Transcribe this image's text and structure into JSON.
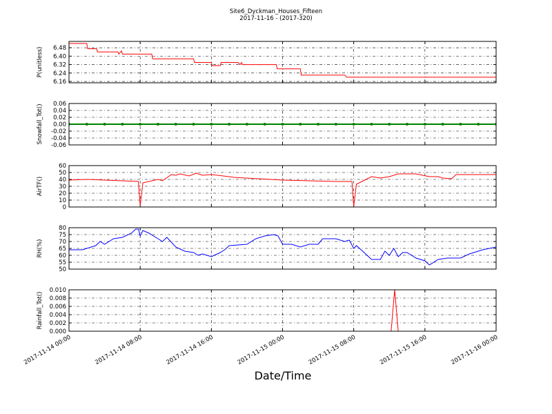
{
  "title": "Site6_Dyckman_Houses_Fifteen",
  "subtitle": "2017-11-16 - (2017-320)",
  "xlabel": "Date/Time",
  "xlim": [
    "2017-11-14 00:00",
    "2017-11-16 00:00"
  ],
  "xticks": [
    "2017-11-14 00:00",
    "2017-11-14 08:00",
    "2017-11-14 16:00",
    "2017-11-15 00:00",
    "2017-11-15 08:00",
    "2017-11-15 16:00",
    "2017-11-16 00:00"
  ],
  "grid": true,
  "chart_data": [
    {
      "type": "line",
      "ylabel": "P(unitless)",
      "ylim": [
        6.147,
        6.54
      ],
      "yticks": [
        6.16,
        6.24,
        6.32,
        {
          "value": 6.4,
          "label": "6.40"
        },
        6.48
      ],
      "x": [
        "2017-11-14 00:00",
        "2017-11-14 02:00",
        "2017-11-14 02:06",
        "2017-11-14 03:06",
        "2017-11-14 03:12",
        "2017-11-14 05:30",
        "2017-11-14 05:36",
        "2017-11-14 05:54",
        "2017-11-14 06:00",
        "2017-11-14 09:18",
        "2017-11-14 09:24",
        "2017-11-14 14:00",
        "2017-11-14 14:06",
        "2017-11-14 16:00",
        "2017-11-14 16:06",
        "2017-11-14 17:00",
        "2017-11-14 17:06",
        "2017-11-14 19:00",
        "2017-11-14 19:12",
        "2017-11-14 19:24",
        "2017-11-14 19:30",
        "2017-11-14 23:18",
        "2017-11-14 23:24",
        "2017-11-15 02:00",
        "2017-11-15 02:06",
        "2017-11-15 07:00",
        "2017-11-15 07:12",
        "2017-11-16 00:00"
      ],
      "series": [
        {
          "color": "#ff0000",
          "values": [
            6.52,
            6.52,
            6.47,
            6.47,
            6.44,
            6.44,
            6.42,
            6.45,
            6.42,
            6.42,
            6.375,
            6.375,
            6.34,
            6.34,
            6.31,
            6.31,
            6.34,
            6.34,
            6.32,
            6.34,
            6.32,
            6.32,
            6.28,
            6.28,
            6.22,
            6.22,
            6.2,
            6.2
          ]
        }
      ]
    },
    {
      "type": "line",
      "ylabel": "Snowfall_Tot()",
      "ylim": [
        -0.06,
        0.06
      ],
      "yticks": [
        -0.06,
        -0.04,
        -0.02,
        {
          "value": 0,
          "label": "0.00"
        },
        0.02,
        0.04,
        0.06
      ],
      "markers": true,
      "x": [
        "2017-11-14 00:00",
        "2017-11-14 02:00",
        "2017-11-14 04:00",
        "2017-11-14 06:00",
        "2017-11-14 08:00",
        "2017-11-14 10:00",
        "2017-11-14 12:00",
        "2017-11-14 14:00",
        "2017-11-14 16:00",
        "2017-11-14 18:00",
        "2017-11-14 20:00",
        "2017-11-14 22:00",
        "2017-11-15 00:00",
        "2017-11-15 02:00",
        "2017-11-15 04:00",
        "2017-11-15 06:00",
        "2017-11-15 08:00",
        "2017-11-15 10:00",
        "2017-11-15 12:00",
        "2017-11-15 14:00",
        "2017-11-15 16:00",
        "2017-11-15 18:00",
        "2017-11-15 20:00",
        "2017-11-15 22:00",
        "2017-11-16 00:00"
      ],
      "series": [
        {
          "color": "#008000",
          "values": [
            0,
            0,
            0,
            0,
            0,
            0,
            0,
            0,
            0,
            0,
            0,
            0,
            0,
            0,
            0,
            0,
            0,
            0,
            0,
            0,
            0,
            0,
            0,
            0,
            0
          ]
        }
      ]
    },
    {
      "type": "line",
      "ylabel": "AirTF()",
      "ylim": [
        0,
        60
      ],
      "yticks": [
        0,
        10,
        20,
        30,
        40,
        50,
        60
      ],
      "x": [
        "2017-11-14 00:00",
        "2017-11-14 02:00",
        "2017-11-14 04:00",
        "2017-11-14 06:00",
        "2017-11-14 07:48",
        "2017-11-14 08:00",
        "2017-11-14 08:18",
        "2017-11-14 10:00",
        "2017-11-14 10:30",
        "2017-11-14 11:30",
        "2017-11-14 12:00",
        "2017-11-14 12:30",
        "2017-11-14 13:30",
        "2017-11-14 14:18",
        "2017-11-14 15:00",
        "2017-11-14 16:00",
        "2017-11-14 18:00",
        "2017-11-14 18:30",
        "2017-11-15 00:00",
        "2017-11-15 06:00",
        "2017-11-15 07:48",
        "2017-11-15 08:00",
        "2017-11-15 08:18",
        "2017-11-15 10:00",
        "2017-11-15 11:00",
        "2017-11-15 12:00",
        "2017-11-15 13:00",
        "2017-11-15 15:00",
        "2017-11-15 16:30",
        "2017-11-15 17:30",
        "2017-11-15 18:00",
        "2017-11-15 19:00",
        "2017-11-15 19:30",
        "2017-11-16 00:00"
      ],
      "series": [
        {
          "color": "#ff0000",
          "values": [
            39,
            40,
            39,
            38,
            37,
            2,
            35,
            40,
            38,
            47,
            46,
            48,
            45,
            49,
            46,
            47,
            44,
            43,
            39,
            37,
            37,
            1,
            33,
            44,
            42,
            44,
            48,
            48,
            44,
            44,
            42,
            41,
            47,
            47
          ]
        }
      ]
    },
    {
      "type": "line",
      "ylabel": "RH(%)",
      "ylim": [
        50,
        80
      ],
      "yticks": [
        50,
        55,
        60,
        65,
        70,
        75,
        80
      ],
      "x": [
        "2017-11-14 00:00",
        "2017-11-14 01:30",
        "2017-11-14 03:00",
        "2017-11-14 03:30",
        "2017-11-14 04:00",
        "2017-11-14 05:00",
        "2017-11-14 06:00",
        "2017-11-14 07:00",
        "2017-11-14 07:30",
        "2017-11-14 07:48",
        "2017-11-14 08:00",
        "2017-11-14 08:18",
        "2017-11-14 09:00",
        "2017-11-14 10:00",
        "2017-11-14 10:30",
        "2017-11-14 11:00",
        "2017-11-14 12:00",
        "2017-11-14 13:00",
        "2017-11-14 14:00",
        "2017-11-14 14:30",
        "2017-11-14 15:00",
        "2017-11-14 16:00",
        "2017-11-14 17:00",
        "2017-11-14 17:30",
        "2017-11-14 18:00",
        "2017-11-14 20:00",
        "2017-11-14 21:00",
        "2017-11-14 22:00",
        "2017-11-14 23:00",
        "2017-11-14 23:30",
        "2017-11-15 00:00",
        "2017-11-15 01:00",
        "2017-11-15 02:00",
        "2017-11-15 03:00",
        "2017-11-15 04:00",
        "2017-11-15 04:30",
        "2017-11-15 06:00",
        "2017-11-15 07:00",
        "2017-11-15 07:30",
        "2017-11-15 08:00",
        "2017-11-15 08:18",
        "2017-11-15 09:00",
        "2017-11-15 10:00",
        "2017-11-15 11:00",
        "2017-11-15 11:30",
        "2017-11-15 12:00",
        "2017-11-15 12:30",
        "2017-11-15 13:00",
        "2017-11-15 13:30",
        "2017-11-15 14:00",
        "2017-11-15 15:00",
        "2017-11-15 16:00",
        "2017-11-15 16:30",
        "2017-11-15 17:30",
        "2017-11-15 18:30",
        "2017-11-15 20:00",
        "2017-11-15 21:00",
        "2017-11-15 22:30",
        "2017-11-16 00:00"
      ],
      "series": [
        {
          "color": "#0000ff",
          "values": [
            64,
            64,
            67,
            70,
            68,
            72,
            73,
            76,
            79,
            79,
            74,
            78,
            76,
            72,
            70,
            73,
            66,
            63,
            62,
            60,
            61,
            59,
            62,
            64,
            67,
            68,
            72,
            74,
            75,
            74,
            68,
            68,
            66,
            68,
            68,
            72,
            72,
            70,
            71,
            65,
            67,
            63,
            57,
            57,
            63,
            60,
            65,
            59,
            62,
            62,
            58,
            56,
            53,
            57,
            58,
            58,
            61,
            64,
            66
          ]
        }
      ]
    },
    {
      "type": "line",
      "ylabel": "Rainfall_Tot()",
      "ylim": [
        0,
        0.01
      ],
      "yticks": [
        {
          "value": 0,
          "label": "0.000"
        },
        0.002,
        0.004,
        0.006,
        0.008,
        {
          "value": 0.01,
          "label": "0.010"
        }
      ],
      "x": [
        "2017-11-14 00:00",
        "2017-11-15 12:12",
        "2017-11-15 12:36",
        "2017-11-15 13:00",
        "2017-11-16 00:00"
      ],
      "series": [
        {
          "color": "#ff0000",
          "values": [
            0,
            0,
            0.01,
            0,
            0
          ]
        }
      ]
    }
  ]
}
